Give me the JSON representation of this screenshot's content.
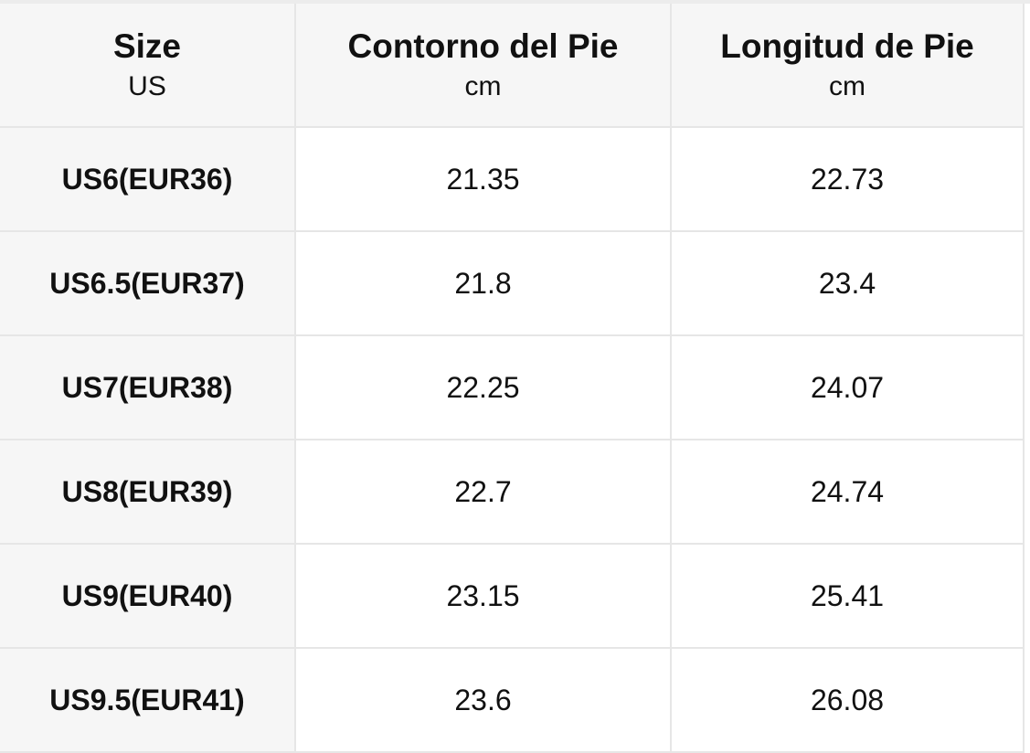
{
  "table": {
    "header": [
      {
        "title": "Size",
        "unit": "US"
      },
      {
        "title": "Contorno del Pie",
        "unit": "cm"
      },
      {
        "title": "Longitud de Pie",
        "unit": "cm"
      }
    ],
    "rows": [
      [
        "US6(EUR36)",
        "21.35",
        "22.73"
      ],
      [
        "US6.5(EUR37)",
        "21.8",
        "23.4"
      ],
      [
        "US7(EUR38)",
        "22.25",
        "24.07"
      ],
      [
        "US8(EUR39)",
        "22.7",
        "24.74"
      ],
      [
        "US9(EUR40)",
        "23.15",
        "25.41"
      ],
      [
        "US9.5(EUR41)",
        "23.6",
        "26.08"
      ]
    ]
  }
}
